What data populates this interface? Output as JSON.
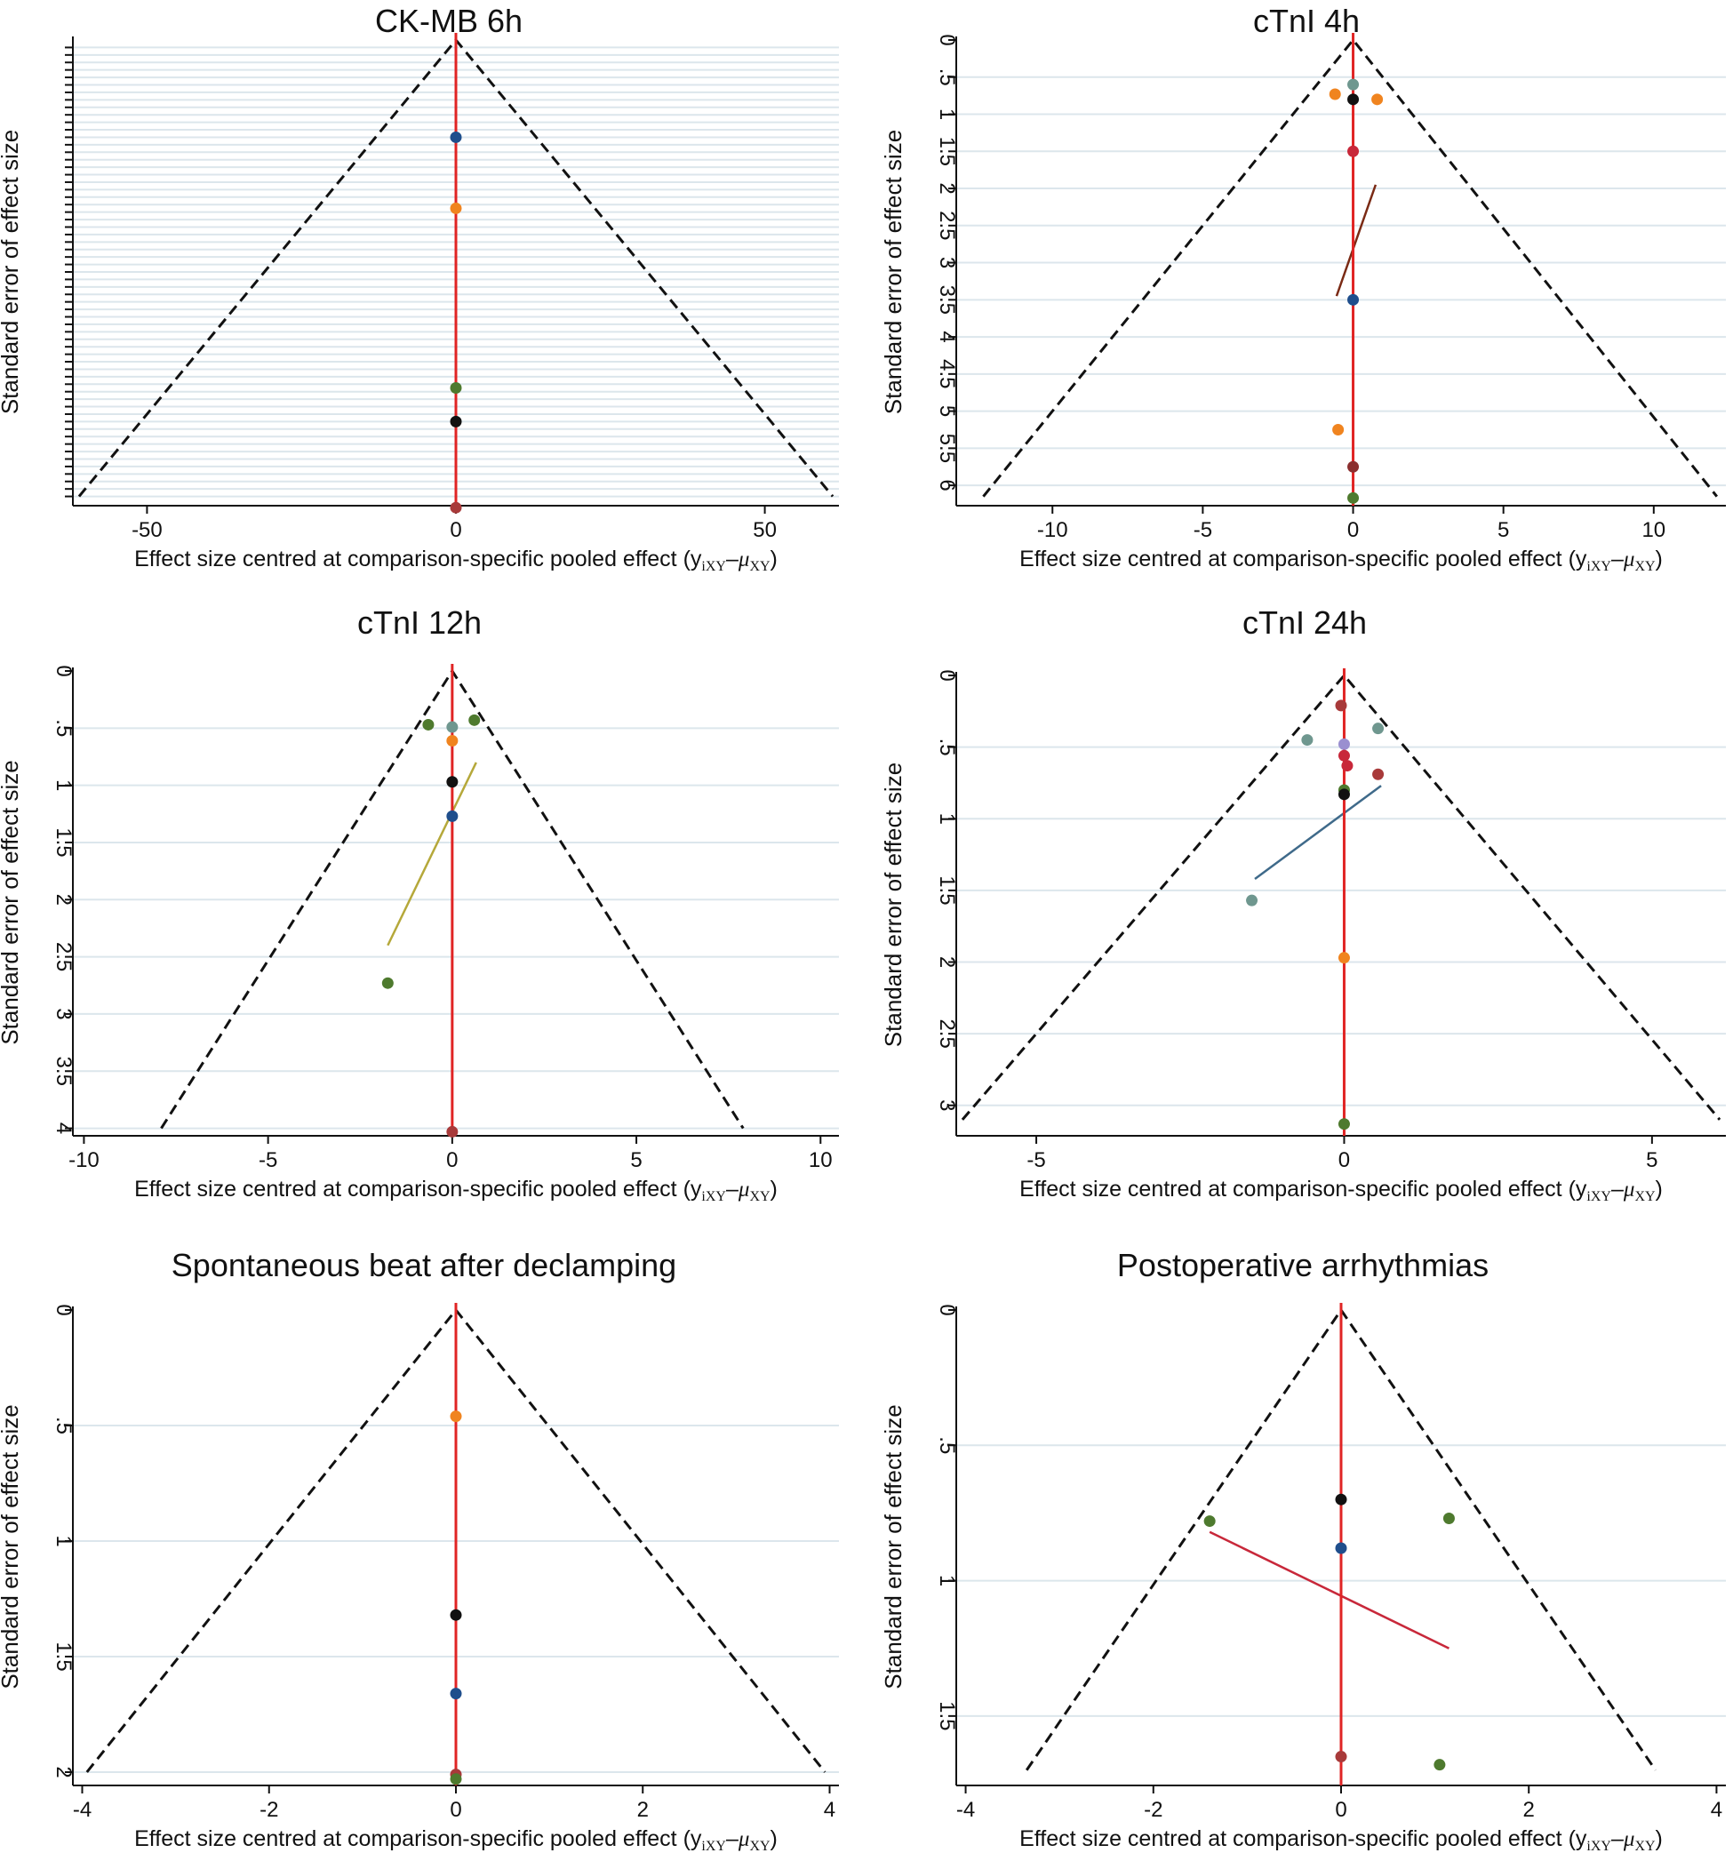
{
  "figure": {
    "layout": "3 rows x 2 columns",
    "type": "comparison-adjusted funnel plots"
  },
  "chart_data": [
    {
      "type": "scatter",
      "title": "CK-MB 6h",
      "xlabel": "Effect size centred at comparison-specific pooled effect",
      "xlabel_math": {
        "open": "(y",
        "sub1": "iXY",
        "dash": "–",
        "mu": "μ",
        "sub2": "XY",
        "close": ")"
      },
      "ylabel": "Standard error of effect size",
      "xlim": [
        -62,
        62
      ],
      "ylim": [
        0,
        62
      ],
      "yticks": [],
      "ytick_labels": [],
      "xticks": [
        -50,
        0,
        50
      ],
      "xtick_labels": [
        "-50",
        "0",
        "50"
      ],
      "grid_lines": [
        1,
        2,
        3,
        4,
        5,
        6,
        7,
        8,
        9,
        10,
        11,
        12,
        13,
        14,
        15,
        16,
        17,
        18,
        19,
        20,
        21,
        22,
        23,
        24,
        25,
        26,
        27,
        28,
        29,
        30,
        31,
        32,
        33,
        34,
        35,
        36,
        37,
        38,
        39,
        40,
        41,
        42,
        43,
        44,
        45,
        46,
        47,
        48,
        49,
        50,
        51,
        52,
        53,
        54,
        55,
        56,
        57,
        58,
        59,
        60,
        61
      ],
      "y_tick_marks": [
        1,
        2,
        3,
        4,
        5,
        6,
        7,
        8,
        9,
        10,
        11,
        12,
        13,
        14,
        15,
        16,
        17,
        18,
        19,
        20,
        21,
        22,
        23,
        24,
        25,
        26,
        27,
        28,
        29,
        30,
        31,
        32,
        33,
        34,
        35,
        36,
        37,
        38,
        39,
        40,
        41,
        42,
        43,
        44,
        45,
        46,
        47,
        48,
        49,
        50,
        51,
        52,
        53,
        54,
        55,
        56,
        57,
        58,
        59,
        60,
        61
      ],
      "funnel": {
        "apex": [
          0,
          0
        ],
        "left": [
          -61,
          61
        ],
        "right": [
          61,
          61
        ]
      },
      "reference_line_x": 0,
      "points": [
        {
          "x": 0,
          "y": 13,
          "color": "#1f4e8c"
        },
        {
          "x": 0,
          "y": 22.5,
          "color": "#f0841f"
        },
        {
          "x": 0,
          "y": 46.5,
          "color": "#4e7a2e"
        },
        {
          "x": 0,
          "y": 51,
          "color": "#111111"
        },
        {
          "x": 0,
          "y": 62.5,
          "color": "#a83a3a"
        }
      ],
      "regression_line": null
    },
    {
      "type": "scatter",
      "title": "cTnI 4h",
      "xlabel": "Effect size centred at comparison-specific pooled effect",
      "xlabel_math": {
        "open": "(y",
        "sub1": "iXY",
        "dash": "–",
        "mu": "μ",
        "sub2": "XY",
        "close": ")"
      },
      "ylabel": "Standard error of effect size",
      "xlim": [
        -13.2,
        12.4
      ],
      "ylim": [
        0,
        6.25
      ],
      "yticks": [
        0,
        0.5,
        1,
        1.5,
        2,
        2.5,
        3,
        3.5,
        4,
        4.5,
        5,
        5.5,
        6
      ],
      "ytick_labels": [
        "0",
        ".5",
        "1",
        "1.5",
        "2",
        "2.5",
        "3",
        "3.5",
        "4",
        "4.5",
        "5",
        "5.5",
        "6"
      ],
      "xticks": [
        -10,
        -5,
        0,
        5,
        10
      ],
      "xtick_labels": [
        "-10",
        "-5",
        "0",
        "5",
        "10"
      ],
      "grid_lines": [
        0.5,
        1,
        1.5,
        2,
        2.5,
        3,
        3.5,
        4,
        4.5,
        5,
        5.5,
        6
      ],
      "y_tick_marks": [
        0,
        0.5,
        1,
        1.5,
        2,
        2.5,
        3,
        3.5,
        4,
        4.5,
        5,
        5.5,
        6
      ],
      "funnel": {
        "apex": [
          0,
          0
        ],
        "left": [
          -12.3,
          6.15
        ],
        "right": [
          12.1,
          6.15
        ]
      },
      "reference_line_x": 0,
      "points": [
        {
          "x": 0,
          "y": 0.6,
          "color": "#6f978f"
        },
        {
          "x": -0.6,
          "y": 0.73,
          "color": "#f0841f"
        },
        {
          "x": 0.8,
          "y": 0.8,
          "color": "#f0841f"
        },
        {
          "x": 0,
          "y": 0.8,
          "color": "#111111"
        },
        {
          "x": 0,
          "y": 1.5,
          "color": "#c8283a"
        },
        {
          "x": 0,
          "y": 3.5,
          "color": "#1f4e8c"
        },
        {
          "x": -0.5,
          "y": 5.25,
          "color": "#f0841f"
        },
        {
          "x": 0,
          "y": 5.75,
          "color": "#8b2f2f"
        },
        {
          "x": 0,
          "y": 6.17,
          "color": "#4e7a2e"
        }
      ],
      "regression_line": {
        "x1": -0.55,
        "y1": 3.45,
        "x2": 0.75,
        "y2": 1.95,
        "color": "#7a2a14"
      }
    },
    {
      "type": "scatter",
      "title": "cTnI 12h",
      "xlabel": "Effect size centred at comparison-specific pooled effect",
      "xlabel_math": {
        "open": "(y",
        "sub1": "iXY",
        "dash": "–",
        "mu": "μ",
        "sub2": "XY",
        "close": ")"
      },
      "ylabel": "Standard error of effect size",
      "xlim": [
        -10.3,
        10.5
      ],
      "ylim": [
        0,
        4.05
      ],
      "yticks": [
        0,
        0.5,
        1,
        1.5,
        2,
        2.5,
        3,
        3.5,
        4
      ],
      "ytick_labels": [
        "0",
        ".5",
        "1",
        "1.5",
        "2",
        "2.5",
        "3",
        "3.5",
        "4"
      ],
      "xticks": [
        -10,
        -5,
        0,
        5,
        10
      ],
      "xtick_labels": [
        "-10",
        "-5",
        "0",
        "5",
        "10"
      ],
      "grid_lines": [
        0.5,
        1,
        1.5,
        2,
        2.5,
        3,
        3.5,
        4
      ],
      "y_tick_marks": [
        0,
        0.5,
        1,
        1.5,
        2,
        2.5,
        3,
        3.5,
        4
      ],
      "funnel": {
        "apex": [
          0,
          0
        ],
        "left": [
          -7.9,
          4.0
        ],
        "right": [
          7.9,
          4.0
        ]
      },
      "reference_line_x": 0,
      "points": [
        {
          "x": 0.6,
          "y": 0.43,
          "color": "#4e7a2e"
        },
        {
          "x": -0.65,
          "y": 0.47,
          "color": "#4e7a2e"
        },
        {
          "x": 0,
          "y": 0.49,
          "color": "#6f978f"
        },
        {
          "x": 0,
          "y": 0.61,
          "color": "#f0841f"
        },
        {
          "x": 0,
          "y": 0.97,
          "color": "#111111"
        },
        {
          "x": 0,
          "y": 1.27,
          "color": "#1f4e8c"
        },
        {
          "x": -1.75,
          "y": 2.73,
          "color": "#4e7a2e"
        },
        {
          "x": 0,
          "y": 4.03,
          "color": "#a83a3a"
        }
      ],
      "regression_line": {
        "x1": -1.75,
        "y1": 2.4,
        "x2": 0.65,
        "y2": 0.8,
        "color": "#b5a83a"
      }
    },
    {
      "type": "scatter",
      "title": "cTnI 24h",
      "xlabel": "Effect size centred at comparison-specific pooled effect",
      "xlabel_math": {
        "open": "(y",
        "sub1": "iXY",
        "dash": "–",
        "mu": "μ",
        "sub2": "XY",
        "close": ")"
      },
      "ylabel": "Standard error of effect size",
      "xlim": [
        -6.3,
        6.2
      ],
      "ylim": [
        0,
        3.2
      ],
      "yticks": [
        0,
        0.5,
        1,
        1.5,
        2,
        2.5,
        3
      ],
      "ytick_labels": [
        "0",
        ".5",
        "1",
        "1.5",
        "2",
        "2.5",
        "3"
      ],
      "xticks": [
        -5,
        0,
        5
      ],
      "xtick_labels": [
        "-5",
        "0",
        "5"
      ],
      "grid_lines": [
        0.5,
        1,
        1.5,
        2,
        2.5,
        3
      ],
      "y_tick_marks": [
        0,
        0.5,
        1,
        1.5,
        2,
        2.5,
        3
      ],
      "funnel": {
        "apex": [
          0,
          0
        ],
        "left": [
          -6.2,
          3.1
        ],
        "right": [
          6.1,
          3.1
        ]
      },
      "reference_line_x": 0,
      "points": [
        {
          "x": -0.05,
          "y": 0.21,
          "color": "#a83a3a"
        },
        {
          "x": 0.55,
          "y": 0.37,
          "color": "#6f978f"
        },
        {
          "x": -0.6,
          "y": 0.45,
          "color": "#6f978f"
        },
        {
          "x": 0,
          "y": 0.48,
          "color": "#9a8fd0"
        },
        {
          "x": 0,
          "y": 0.56,
          "color": "#c8283a"
        },
        {
          "x": 0.05,
          "y": 0.63,
          "color": "#c8283a"
        },
        {
          "x": 0.55,
          "y": 0.69,
          "color": "#a83a3a"
        },
        {
          "x": 0,
          "y": 0.8,
          "color": "#4e7a2e"
        },
        {
          "x": 0,
          "y": 0.83,
          "color": "#111111"
        },
        {
          "x": -1.5,
          "y": 1.57,
          "color": "#6f978f"
        },
        {
          "x": 0,
          "y": 1.97,
          "color": "#f0841f"
        },
        {
          "x": 0,
          "y": 3.13,
          "color": "#4e7a2e"
        }
      ],
      "regression_line": {
        "x1": -1.45,
        "y1": 1.42,
        "x2": 0.6,
        "y2": 0.77,
        "color": "#3f6a8a"
      }
    },
    {
      "type": "scatter",
      "title": "Spontaneous beat after declamping",
      "xlabel": "Effect size centred at comparison-specific pooled effect",
      "xlabel_math": {
        "open": "(y",
        "sub1": "iXY",
        "dash": "–",
        "mu": "μ",
        "sub2": "XY",
        "close": ")"
      },
      "ylabel": "Standard error of effect size",
      "xlim": [
        -4.1,
        4.1
      ],
      "ylim": [
        0,
        2.05
      ],
      "yticks": [
        0,
        0.5,
        1,
        1.5,
        2
      ],
      "ytick_labels": [
        "0",
        ".5",
        "1",
        "1.5",
        "2"
      ],
      "xticks": [
        -4,
        -2,
        0,
        2,
        4
      ],
      "xtick_labels": [
        "-4",
        "-2",
        "0",
        "2",
        "4"
      ],
      "grid_lines": [
        0.5,
        1,
        1.5,
        2
      ],
      "y_tick_marks": [
        0,
        0.5,
        1,
        1.5,
        2
      ],
      "funnel": {
        "apex": [
          0,
          0
        ],
        "left": [
          -3.95,
          2.0
        ],
        "right": [
          3.95,
          2.0
        ]
      },
      "reference_line_x": 0,
      "points": [
        {
          "x": 0,
          "y": 0.46,
          "color": "#f0841f"
        },
        {
          "x": 0,
          "y": 1.32,
          "color": "#111111"
        },
        {
          "x": 0,
          "y": 1.66,
          "color": "#1f4e8c"
        },
        {
          "x": 0,
          "y": 2.01,
          "color": "#a83a3a"
        },
        {
          "x": 0,
          "y": 2.03,
          "color": "#4e7a2e"
        }
      ],
      "regression_line": null
    },
    {
      "type": "scatter",
      "title": "Postoperative arrhythmias",
      "xlabel": "Effect size centred at comparison-specific pooled effect",
      "xlabel_math": {
        "open": "(y",
        "sub1": "iXY",
        "dash": "–",
        "mu": "μ",
        "sub2": "XY",
        "close": ")"
      },
      "ylabel": "Standard error of effect size",
      "xlim": [
        -4.1,
        4.1
      ],
      "ylim": [
        0,
        1.75
      ],
      "yticks": [
        0,
        0.5,
        1,
        1.5
      ],
      "ytick_labels": [
        "0",
        ".5",
        "1",
        "1.5"
      ],
      "xticks": [
        -4,
        -2,
        0,
        2,
        4
      ],
      "xtick_labels": [
        "-4",
        "-2",
        "0",
        "2",
        "4"
      ],
      "grid_lines": [
        0.5,
        1,
        1.5
      ],
      "y_tick_marks": [
        0,
        0.5,
        1,
        1.5
      ],
      "funnel": {
        "apex": [
          0,
          0
        ],
        "left": [
          -3.35,
          1.7
        ],
        "right": [
          3.35,
          1.7
        ]
      },
      "reference_line_x": 0,
      "points": [
        {
          "x": 0,
          "y": 0.7,
          "color": "#111111"
        },
        {
          "x": 1.15,
          "y": 0.77,
          "color": "#4e7a2e"
        },
        {
          "x": -1.4,
          "y": 0.78,
          "color": "#4e7a2e"
        },
        {
          "x": 0,
          "y": 0.88,
          "color": "#1f4e8c"
        },
        {
          "x": 0,
          "y": 1.65,
          "color": "#a83a3a"
        },
        {
          "x": 1.05,
          "y": 1.68,
          "color": "#4e7a2e"
        }
      ],
      "regression_line": {
        "x1": -1.4,
        "y1": 0.82,
        "x2": 1.15,
        "y2": 1.25,
        "color": "#c8283a"
      }
    }
  ],
  "colors": {
    "reference_line": "#e02424",
    "funnel": "#111111",
    "grid": "#dce6ec",
    "axis": "#111111"
  }
}
